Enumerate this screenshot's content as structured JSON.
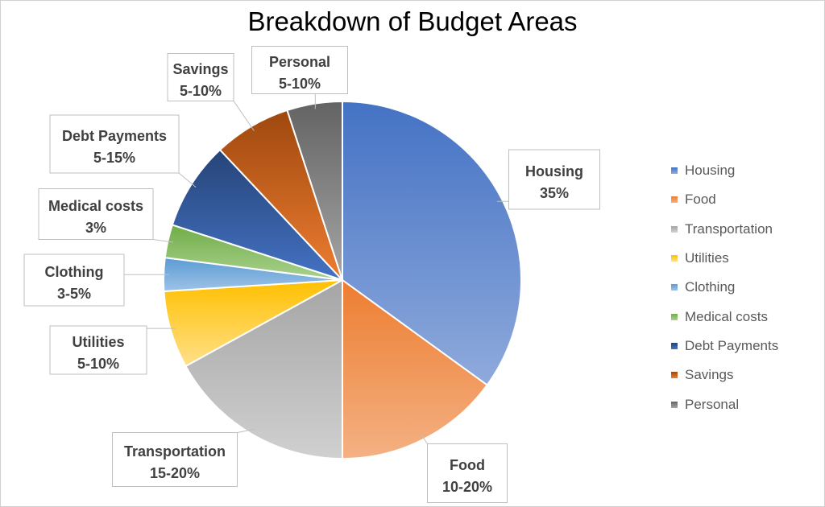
{
  "chart_data": {
    "type": "pie",
    "title": "Breakdown of Budget Areas",
    "categories": [
      "Housing",
      "Food",
      "Transportation",
      "Utilities",
      "Clothing",
      "Medical costs",
      "Debt Payments",
      "Savings",
      "Personal"
    ],
    "values": [
      35,
      15,
      17,
      7,
      3,
      3,
      8,
      7,
      5
    ],
    "data_labels": [
      "35%",
      "10-20%",
      "15-20%",
      "5-10%",
      "3-5%",
      "3%",
      "5-15%",
      "5-10%",
      "5-10%"
    ],
    "colors": [
      "#4472C4",
      "#ED7D31",
      "#A5A5A5",
      "#FFC000",
      "#5B9BD5",
      "#70AD47",
      "#264478",
      "#9E480E",
      "#636363"
    ],
    "light_colors": [
      "#8FAADC",
      "#F4B183",
      "#D0D0D0",
      "#FFE08A",
      "#9DC3E6",
      "#A9D18E",
      "#4472C4",
      "#ED7D31",
      "#A5A5A5"
    ],
    "legend_position": "right",
    "start_angle_deg": 0,
    "direction": "clockwise"
  }
}
